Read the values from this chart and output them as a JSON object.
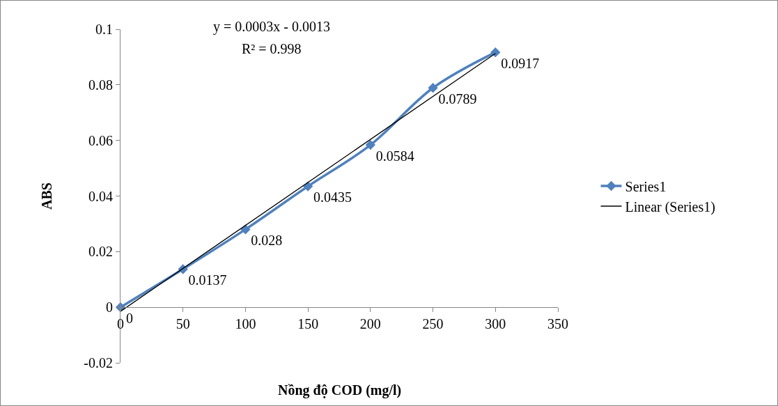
{
  "chart_data": {
    "type": "line",
    "xlabel": "Nồng độ COD (mg/l)",
    "ylabel": "ABS",
    "x": [
      0,
      50,
      100,
      150,
      200,
      250,
      300
    ],
    "series": [
      {
        "name": "Series1",
        "color": "#4f81bd",
        "values": [
          0,
          0.0137,
          0.028,
          0.0435,
          0.0584,
          0.0789,
          0.0917
        ],
        "value_labels": [
          "0",
          "0.0137",
          "0.028",
          "0.0435",
          "0.0584",
          "0.0789",
          "0.0917"
        ],
        "marker": "diamond"
      },
      {
        "name": "Linear (Series1)",
        "color": "#000000",
        "x": [
          0,
          300
        ],
        "values": [
          -0.0015,
          0.0913
        ],
        "marker": "none"
      }
    ],
    "xlim": [
      0,
      350
    ],
    "xticks": [
      0,
      50,
      100,
      150,
      200,
      250,
      300,
      350
    ],
    "ylim": [
      -0.02,
      0.1
    ],
    "yticks": [
      -0.02,
      0,
      0.02,
      0.04,
      0.06,
      0.08,
      0.1
    ],
    "annotations": [
      "y = 0.0003x - 0.0013",
      "R² = 0.998"
    ],
    "grid": false,
    "legend": "right",
    "line_style": "solid"
  }
}
